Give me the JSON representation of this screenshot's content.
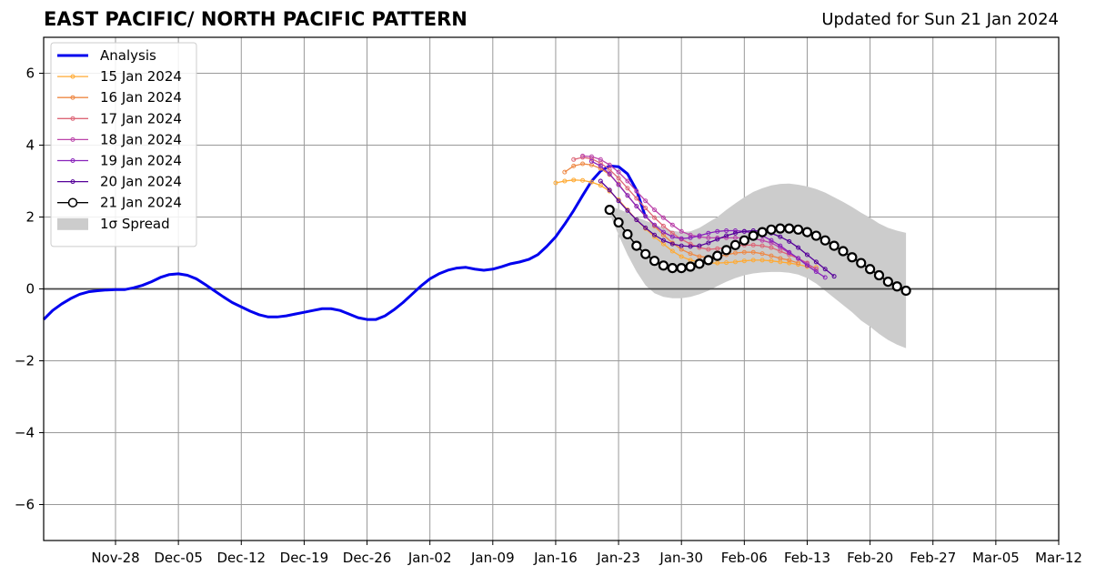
{
  "header": {
    "title": "EAST PACIFIC/ NORTH PACIFIC PATTERN",
    "subtitle": "Updated for Sun 21 Jan 2024"
  },
  "chart_data": {
    "type": "line",
    "xlim": [
      "2023-11-20",
      "2024-03-12"
    ],
    "ylim": [
      -7,
      7
    ],
    "x_ticks": [
      "Nov-28",
      "Dec-05",
      "Dec-12",
      "Dec-19",
      "Dec-26",
      "Jan-02",
      "Jan-09",
      "Jan-16",
      "Jan-23",
      "Jan-30",
      "Feb-06",
      "Feb-13",
      "Feb-20",
      "Feb-27",
      "Mar-05",
      "Mar-12"
    ],
    "x_tick_dates": [
      "2023-11-28",
      "2023-12-05",
      "2023-12-12",
      "2023-12-19",
      "2023-12-26",
      "2024-01-02",
      "2024-01-09",
      "2024-01-16",
      "2024-01-23",
      "2024-01-30",
      "2024-02-06",
      "2024-02-13",
      "2024-02-20",
      "2024-02-27",
      "2024-03-05",
      "2024-03-12"
    ],
    "y_ticks": [
      -6,
      -4,
      -2,
      0,
      2,
      4,
      6
    ],
    "y_tick_labels": [
      "−6",
      "−4",
      "−2",
      "0",
      "2",
      "4",
      "6"
    ],
    "grid": true,
    "legend_position": "top-left",
    "series": [
      {
        "name": "Analysis",
        "color": "#0000ee",
        "style": "thick",
        "start_date": "2023-11-20",
        "values": [
          -0.85,
          -0.6,
          -0.42,
          -0.27,
          -0.15,
          -0.08,
          -0.05,
          -0.03,
          -0.02,
          -0.02,
          0.03,
          0.1,
          0.2,
          0.32,
          0.4,
          0.42,
          0.38,
          0.28,
          0.12,
          -0.05,
          -0.22,
          -0.38,
          -0.5,
          -0.62,
          -0.72,
          -0.78,
          -0.78,
          -0.75,
          -0.7,
          -0.65,
          -0.6,
          -0.55,
          -0.55,
          -0.6,
          -0.7,
          -0.8,
          -0.85,
          -0.85,
          -0.75,
          -0.58,
          -0.38,
          -0.15,
          0.08,
          0.28,
          0.42,
          0.52,
          0.58,
          0.6,
          0.55,
          0.52,
          0.55,
          0.62,
          0.7,
          0.75,
          0.82,
          0.95,
          1.18,
          1.45,
          1.8,
          2.18,
          2.6,
          3.0,
          3.28,
          3.42,
          3.4,
          3.2,
          2.75,
          2.0
        ]
      },
      {
        "name": "15 Jan 2024",
        "color": "#ffaa33",
        "style": "thin",
        "start_date": "2024-01-16",
        "values": [
          2.95,
          3.0,
          3.03,
          3.02,
          2.97,
          2.88,
          2.72,
          2.48,
          2.2,
          1.92,
          1.68,
          1.45,
          1.25,
          1.05,
          0.9,
          0.8,
          0.75,
          0.72,
          0.72,
          0.73,
          0.75,
          0.78,
          0.8,
          0.8,
          0.78,
          0.75,
          0.72,
          0.68,
          0.62,
          0.6
        ]
      },
      {
        "name": "16 Jan 2024",
        "color": "#ee8844",
        "style": "thin",
        "start_date": "2024-01-17",
        "values": [
          3.25,
          3.42,
          3.48,
          3.45,
          3.35,
          3.18,
          2.92,
          2.6,
          2.3,
          2.02,
          1.75,
          1.5,
          1.28,
          1.1,
          0.98,
          0.9,
          0.88,
          0.9,
          0.95,
          1.0,
          1.02,
          1.02,
          0.98,
          0.92,
          0.85,
          0.8,
          0.72
        ]
      },
      {
        "name": "17 Jan 2024",
        "color": "#dd6677",
        "style": "thin",
        "start_date": "2024-01-18",
        "values": [
          3.6,
          3.66,
          3.62,
          3.5,
          3.32,
          3.08,
          2.8,
          2.52,
          2.25,
          1.98,
          1.75,
          1.55,
          1.38,
          1.25,
          1.15,
          1.1,
          1.12,
          1.15,
          1.2,
          1.22,
          1.22,
          1.2,
          1.15,
          1.05,
          0.95,
          0.85,
          0.72
        ]
      },
      {
        "name": "18 Jan 2024",
        "color": "#bb44aa",
        "style": "thin",
        "start_date": "2024-01-19",
        "values": [
          3.7,
          3.68,
          3.6,
          3.45,
          3.25,
          3.0,
          2.72,
          2.45,
          2.2,
          1.98,
          1.78,
          1.6,
          1.5,
          1.45,
          1.42,
          1.42,
          1.42,
          1.42,
          1.42,
          1.4,
          1.35,
          1.28,
          1.15,
          1.0,
          0.85,
          0.7,
          0.55
        ]
      },
      {
        "name": "19 Jan 2024",
        "color": "#8822bb",
        "style": "thin",
        "start_date": "2024-01-20",
        "values": [
          3.55,
          3.42,
          3.2,
          2.9,
          2.6,
          2.3,
          2.02,
          1.78,
          1.58,
          1.45,
          1.4,
          1.42,
          1.48,
          1.55,
          1.6,
          1.62,
          1.62,
          1.6,
          1.55,
          1.48,
          1.35,
          1.2,
          1.02,
          0.85,
          0.65,
          0.48,
          0.32
        ]
      },
      {
        "name": "20 Jan 2024",
        "color": "#550099",
        "style": "thin",
        "start_date": "2024-01-21",
        "values": [
          3.0,
          2.75,
          2.45,
          2.18,
          1.92,
          1.7,
          1.5,
          1.35,
          1.25,
          1.2,
          1.18,
          1.2,
          1.28,
          1.38,
          1.48,
          1.55,
          1.6,
          1.62,
          1.6,
          1.55,
          1.45,
          1.32,
          1.15,
          0.95,
          0.75,
          0.55,
          0.35
        ]
      },
      {
        "name": "21 Jan 2024",
        "color": "#000000",
        "style": "circles",
        "start_date": "2024-01-22",
        "values": [
          2.2,
          1.85,
          1.52,
          1.2,
          0.97,
          0.78,
          0.65,
          0.58,
          0.58,
          0.62,
          0.7,
          0.8,
          0.92,
          1.08,
          1.22,
          1.35,
          1.48,
          1.58,
          1.65,
          1.68,
          1.68,
          1.65,
          1.58,
          1.48,
          1.35,
          1.2,
          1.05,
          0.88,
          0.72,
          0.55,
          0.38,
          0.2,
          0.07,
          -0.05
        ]
      }
    ],
    "spread": {
      "name": "1σ Spread",
      "color": "#cccccc",
      "start_date": "2024-01-22",
      "upper": [
        2.3,
        2.22,
        2.12,
        2.0,
        1.9,
        1.8,
        1.7,
        1.62,
        1.58,
        1.6,
        1.7,
        1.85,
        2.0,
        2.2,
        2.38,
        2.55,
        2.7,
        2.8,
        2.88,
        2.92,
        2.93,
        2.9,
        2.85,
        2.78,
        2.68,
        2.55,
        2.42,
        2.28,
        2.12,
        1.98,
        1.82,
        1.7,
        1.62,
        1.56
      ],
      "lower": [
        2.1,
        1.5,
        0.95,
        0.48,
        0.1,
        -0.12,
        -0.22,
        -0.26,
        -0.26,
        -0.22,
        -0.15,
        -0.05,
        0.08,
        0.2,
        0.3,
        0.38,
        0.43,
        0.46,
        0.47,
        0.47,
        0.45,
        0.4,
        0.3,
        0.15,
        -0.05,
        -0.25,
        -0.45,
        -0.65,
        -0.88,
        -1.05,
        -1.25,
        -1.42,
        -1.55,
        -1.65
      ]
    }
  }
}
